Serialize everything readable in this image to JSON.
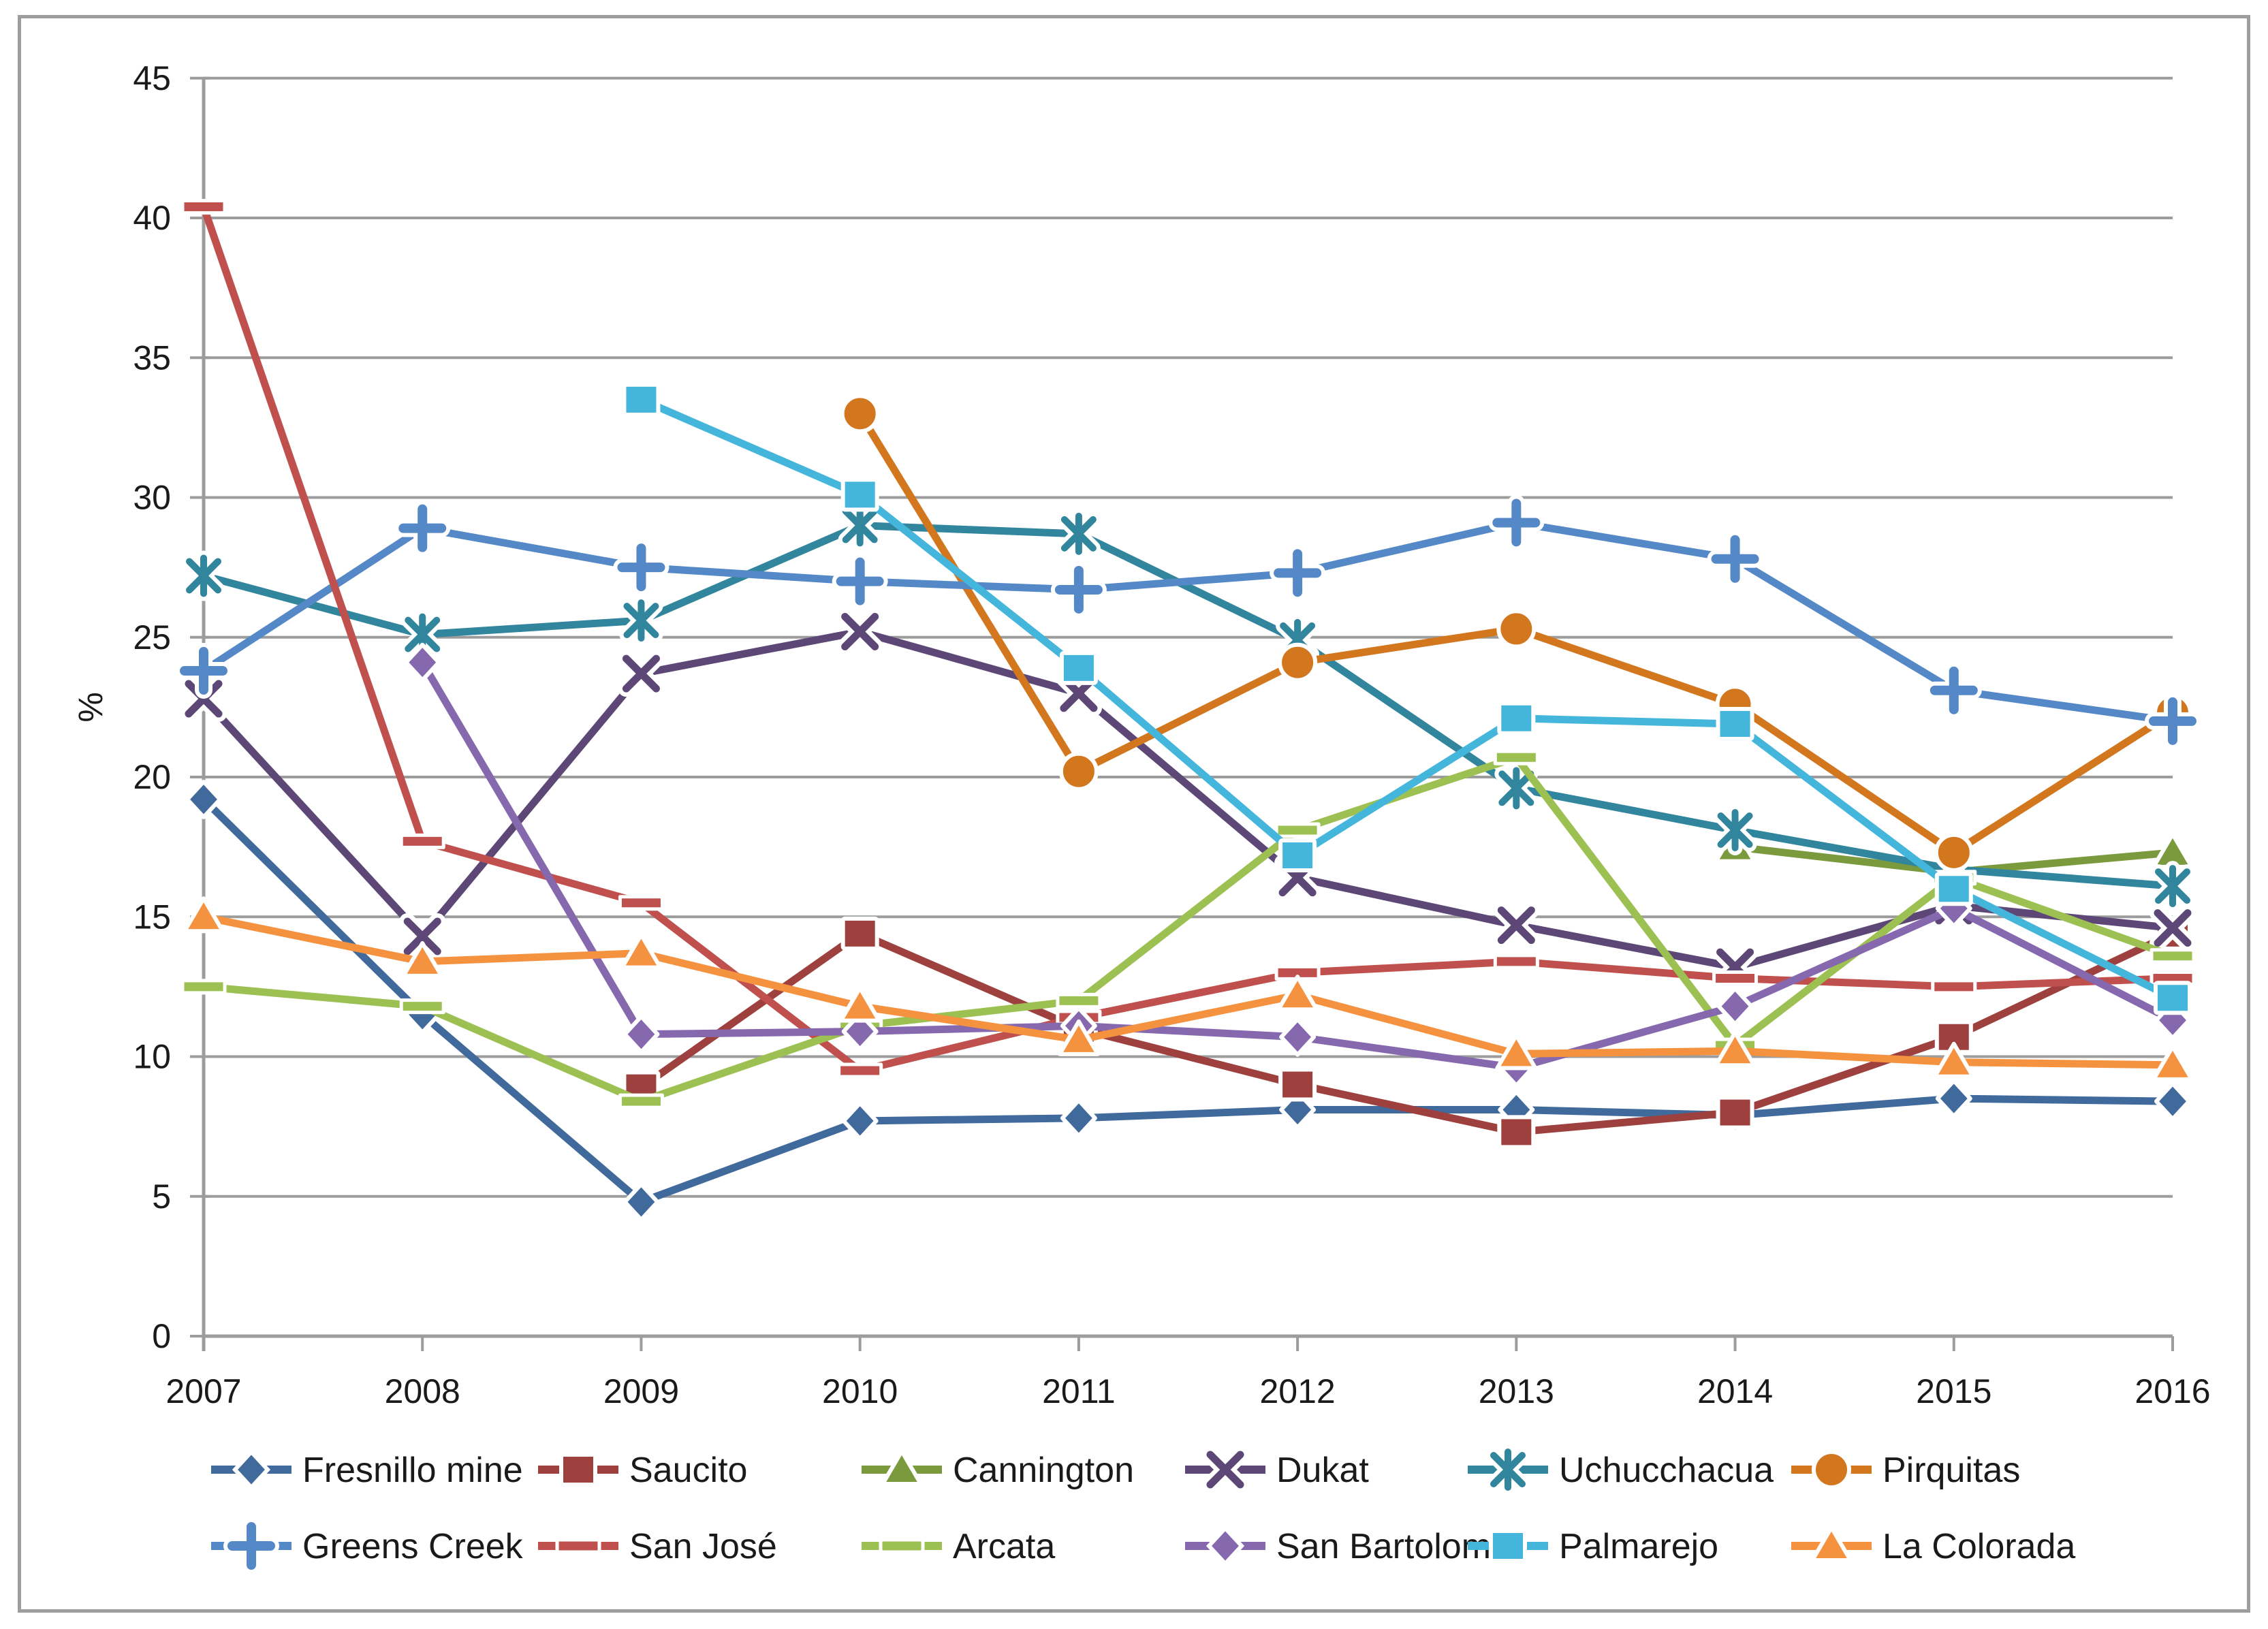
{
  "chart_data": {
    "type": "line",
    "title": "",
    "xlabel": "",
    "ylabel": "%",
    "x": [
      2007,
      2008,
      2009,
      2010,
      2011,
      2012,
      2013,
      2014,
      2015,
      2016
    ],
    "x_ticks": [
      "2007",
      "2008",
      "2009",
      "2010",
      "2011",
      "2012",
      "2013",
      "2014",
      "2015",
      "2016"
    ],
    "y_ticks": [
      "0",
      "5",
      "10",
      "15",
      "20",
      "25",
      "30",
      "35",
      "40",
      "45"
    ],
    "ylim": [
      0,
      45
    ],
    "ytick_step": 5,
    "grid": "horizontal-only",
    "grid_color": "#9c9c9c",
    "legend_position": "bottom-two-rows",
    "series": [
      {
        "name": "Fresnillo mine",
        "color": "#40699C",
        "marker": "diamond",
        "values": [
          19.2,
          11.5,
          4.8,
          7.7,
          7.8,
          8.1,
          8.1,
          7.9,
          8.5,
          8.4
        ]
      },
      {
        "name": "Saucito",
        "color": "#9E413E",
        "marker": "square",
        "values": [
          null,
          null,
          8.9,
          14.4,
          11.0,
          9.0,
          7.3,
          8.0,
          10.7,
          14.4
        ]
      },
      {
        "name": "Cannington",
        "color": "#7A9A3D",
        "marker": "triangle",
        "values": [
          null,
          null,
          null,
          null,
          null,
          null,
          null,
          17.5,
          16.6,
          17.3
        ]
      },
      {
        "name": "Dukat",
        "color": "#5D4776",
        "marker": "x",
        "values": [
          22.8,
          14.3,
          23.7,
          25.2,
          23.0,
          16.4,
          14.7,
          13.2,
          15.4,
          14.6
        ]
      },
      {
        "name": "Uchucchacua",
        "color": "#31859C",
        "marker": "star",
        "values": [
          27.2,
          25.1,
          25.6,
          29.0,
          28.7,
          24.9,
          19.6,
          18.1,
          16.7,
          16.1
        ]
      },
      {
        "name": "Pirquitas",
        "color": "#D2771E",
        "marker": "circle",
        "values": [
          null,
          null,
          null,
          33.0,
          20.2,
          24.1,
          25.3,
          22.6,
          17.3,
          22.3
        ]
      },
      {
        "name": "Greens Creek",
        "color": "#5488C7",
        "marker": "plus",
        "values": [
          23.8,
          28.9,
          27.5,
          27.0,
          26.7,
          27.3,
          29.1,
          27.8,
          23.1,
          22.0
        ]
      },
      {
        "name": "San José",
        "color": "#C0504D",
        "marker": "dash",
        "values": [
          40.4,
          17.7,
          15.5,
          9.5,
          11.4,
          13.0,
          13.4,
          12.8,
          12.5,
          12.8
        ]
      },
      {
        "name": "Arcata",
        "color": "#9CC152",
        "marker": "dash",
        "values": [
          12.5,
          11.8,
          8.4,
          11.1,
          12.0,
          18.1,
          20.7,
          10.4,
          16.4,
          13.6
        ]
      },
      {
        "name": "San Bartolomé",
        "color": "#8668AE",
        "marker": "diamond",
        "values": [
          null,
          24.1,
          10.8,
          10.9,
          11.1,
          10.7,
          9.6,
          11.8,
          15.3,
          11.3
        ]
      },
      {
        "name": "Palmarejo",
        "color": "#44B6DB",
        "marker": "square",
        "values": [
          null,
          null,
          33.5,
          30.1,
          23.9,
          17.2,
          22.1,
          21.9,
          16.0,
          12.1
        ]
      },
      {
        "name": "La Colorada",
        "color": "#F59240",
        "marker": "triangle",
        "values": [
          15.0,
          13.4,
          13.7,
          11.8,
          10.6,
          12.2,
          10.1,
          10.2,
          9.8,
          9.7
        ]
      }
    ]
  }
}
